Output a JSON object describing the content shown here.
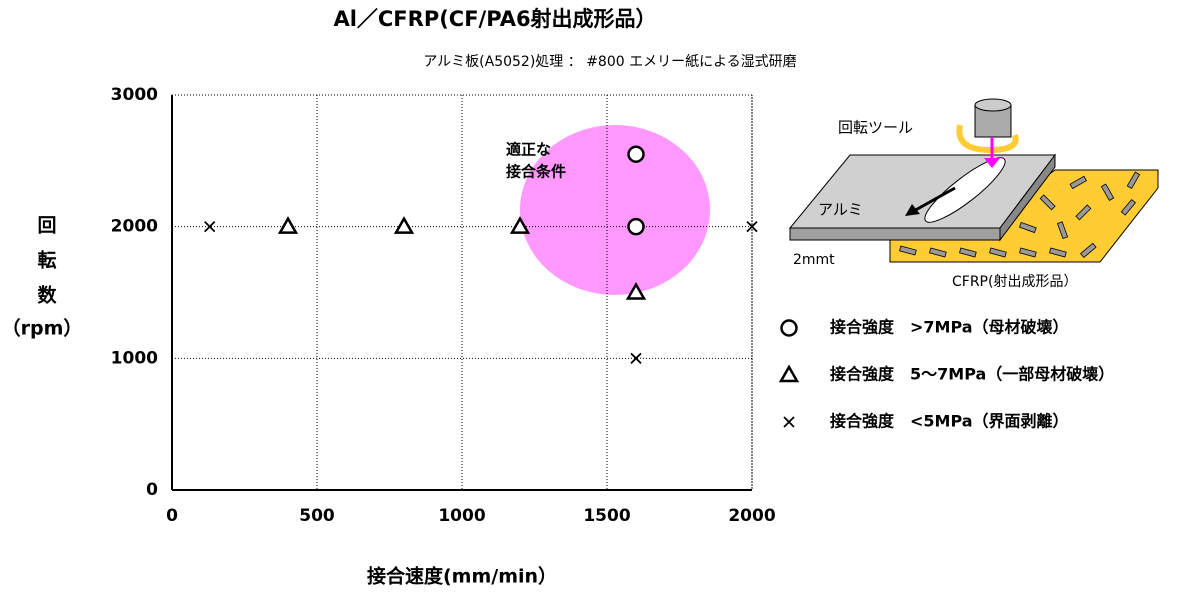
{
  "chart_data": {
    "type": "scatter",
    "title": "Al／CFRP(CF/PA6射出成形品）",
    "subtitle": "アルミ板(A5052)処理 ： #800 エメリー紙による湿式研磨",
    "xlabel": "接合速度(mm/min）",
    "ylabel": [
      "回",
      "転",
      "数",
      "（rpm）"
    ],
    "xlim": [
      0,
      2000
    ],
    "xticks": [
      0,
      500,
      1000,
      1500,
      2000
    ],
    "ylim": [
      0,
      3000
    ],
    "yticks": [
      0,
      1000,
      2000,
      3000
    ],
    "grid": true,
    "legend": "right",
    "series": [
      {
        "name": "接合強度　>7MPa（母材破壊）",
        "marker": "circle",
        "color": "#000000",
        "x": [
          1600,
          1600
        ],
        "values": [
          2550,
          2000
        ]
      },
      {
        "name": "接合強度　5～7MPa（一部母材破壊）",
        "marker": "triangle",
        "color": "#000000",
        "x": [
          400,
          800,
          1200,
          1600
        ],
        "values": [
          2000,
          2000,
          2000,
          1500
        ]
      },
      {
        "name": "接合強度　<5MPa（界面剥離）",
        "marker": "cross",
        "color": "#000000",
        "x": [
          130,
          1600,
          2000
        ],
        "values": [
          2000,
          1000,
          2000
        ]
      }
    ],
    "annotations": [
      "適正な",
      "接合条件"
    ],
    "illustration": {
      "tool": "回転ツール",
      "aluminum": "アルミ",
      "thickness": "2mmt",
      "cfrp": "CFRP(射出成形品）"
    }
  }
}
